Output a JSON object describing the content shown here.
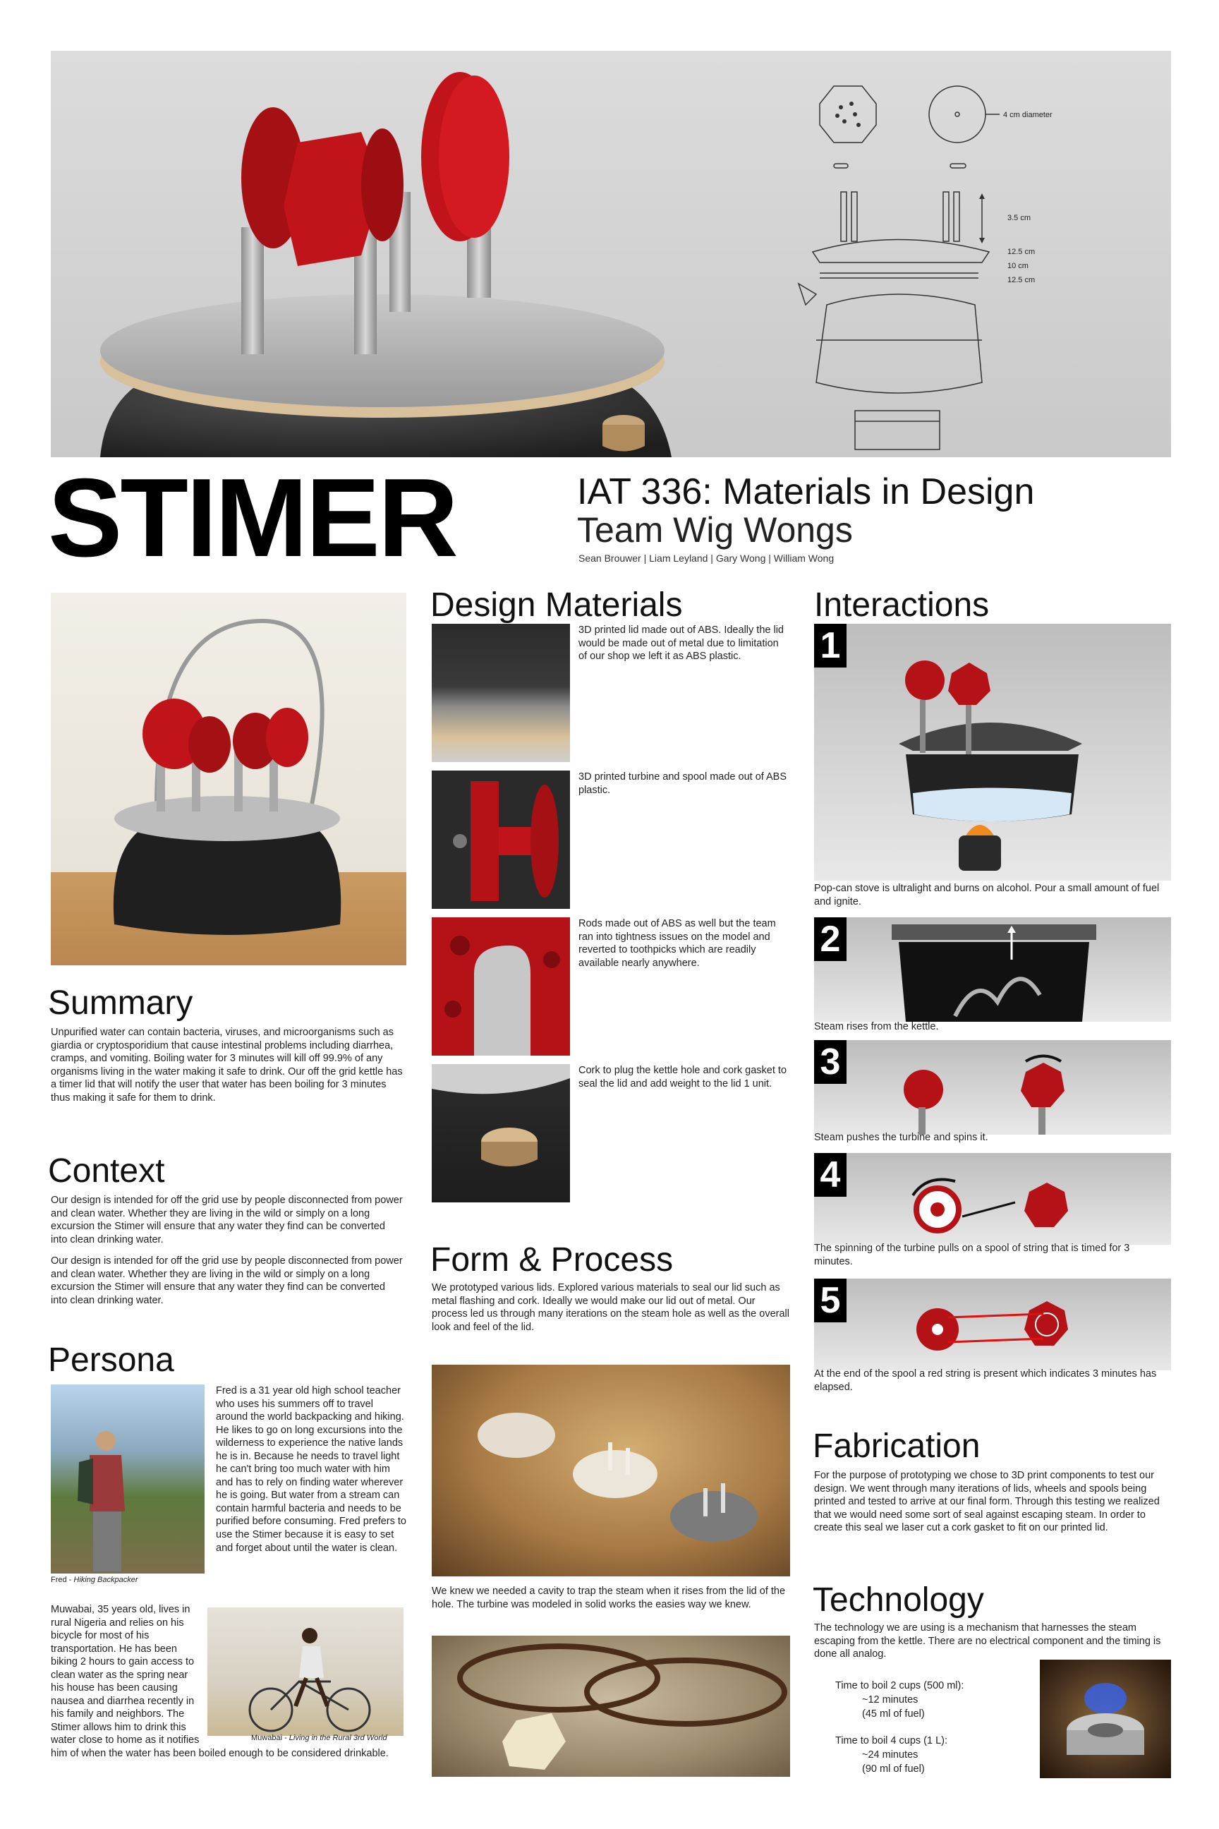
{
  "header": {
    "title": "STIMER",
    "course": "IAT 336: Materials in Design",
    "team": "Team Wig Wongs",
    "names": "Sean Brouwer | Liam Leyland | Gary Wong | William Wong"
  },
  "diagram": {
    "diameter": "4 cm diameter",
    "h1": "3.5 cm",
    "d1": "12.5 cm",
    "d2": "10 cm",
    "d3": "12.5 cm"
  },
  "summary": {
    "heading": "Summary",
    "text": "Unpurified water can contain bacteria, viruses, and microorganisms such as giardia or cryptosporidium that cause intestinal problems including diarrhea, cramps, and vomiting. Boiling water for 3 minutes will kill off 99.9% of any organisms living in the water making it safe to drink. Our off the grid kettle has a timer lid that will notify the user that water has been boiling for 3 minutes thus making it safe for them to drink."
  },
  "context": {
    "heading": "Context",
    "p1": "Our design is intended for off the grid use by people disconnected from power and clean water. Whether they are living in the wild or simply on a long excursion the Stimer will ensure that any water they find can be converted into clean drinking water.",
    "p2": "Our design is intended for off the grid use by people disconnected from power and clean water. Whether they are living in the wild or simply on a long excursion the Stimer will ensure that any water they find can be converted into clean drinking water."
  },
  "persona": {
    "heading": "Persona",
    "fred_text": "Fred is a 31 year old high school teacher who uses his summers off to travel around the world backpacking and hiking. He likes to go on long excursions into the wilderness to experience the native lands he is in. Because he needs to travel light he can't bring too much water with him and has to rely on finding water wherever he is going. But water from a stream can contain harmful bacteria and needs to be purified before consuming. Fred prefers to use the Stimer because it is easy to set and forget about until the water is clean.",
    "fred_caption_name": "Fred - ",
    "fred_caption_desc": "Hiking Backpacker",
    "muwabai_text": "Muwabai, 35 years old, lives in rural Nigeria and relies on his bicycle for most of his transportation. He has been biking 2 hours to gain access to clean water as the spring near his house has been causing nausea and diarrhea recently in his family and neighbors. The Stimer allows him to drink this water close to home as it notifies him of when the water has been boiled enough to be considered drinkable.",
    "muwabai_caption_name": "Muwabai - ",
    "muwabai_caption_desc": "Living in the Rural 3rd World"
  },
  "design_materials": {
    "heading": "Design Materials",
    "items": [
      "3D printed lid made out of ABS. Ideally the lid would be made out of metal due to limitation of our shop we left it as ABS plastic.",
      "3D printed turbine and spool made out of ABS plastic.",
      "Rods made out of ABS as well but the team ran into tightness issues on the model and reverted to toothpicks which are readily available nearly anywhere.",
      "Cork to plug the kettle hole and cork gasket to seal the lid and add weight to the lid 1 unit."
    ]
  },
  "form_process": {
    "heading": "Form & Process",
    "text1": "We prototyped various lids. Explored various materials to seal our lid such as metal flashing and cork. Ideally we would make our lid out of metal. Our process led us through many iterations on the steam hole as well as the overall look and feel of the lid.",
    "text2": "We knew we needed a cavity to trap the steam when it rises from the lid of the hole. The turbine was modeled in solid works the easies way we knew."
  },
  "interactions": {
    "heading": "Interactions",
    "steps": [
      {
        "num": "1",
        "text": "Pop-can stove is ultralight and burns on alcohol.  Pour a small amount of fuel and ignite."
      },
      {
        "num": "2",
        "text": "Steam rises from the kettle."
      },
      {
        "num": "3",
        "text": "Steam pushes the turbine and spins it."
      },
      {
        "num": "4",
        "text": "The spinning of the turbine pulls on a spool of string that is timed for 3 minutes."
      },
      {
        "num": "5",
        "text": "At the end of the spool a red string is present which indicates 3 minutes has elapsed."
      }
    ]
  },
  "fabrication": {
    "heading": "Fabrication",
    "text": "For the purpose of prototyping we chose to 3D print components to test our design. We went through many iterations of lids, wheels and spools being printed and tested to arrive at our final form. Through this testing we realized that we would need some sort of seal against escaping steam.  In order to create this seal we laser cut a cork gasket to fit on our printed lid."
  },
  "technology": {
    "heading": "Technology",
    "text": "The technology we are using is a mechanism that harnesses the steam escaping from the kettle. There are no electrical component and the timing is done all analog.",
    "boil1_title": "Time to boil 2 cups (500 ml):",
    "boil1_time": "~12 minutes",
    "boil1_fuel": "(45 ml of fuel)",
    "boil2_title": "Time to boil 4 cups (1 L):",
    "boil2_time": "~24 minutes",
    "boil2_fuel": "(90 ml of fuel)"
  },
  "colors": {
    "accent_red": "#c0141a",
    "kettle_black": "#2a2a2a",
    "metal": "#b7b7b7"
  }
}
